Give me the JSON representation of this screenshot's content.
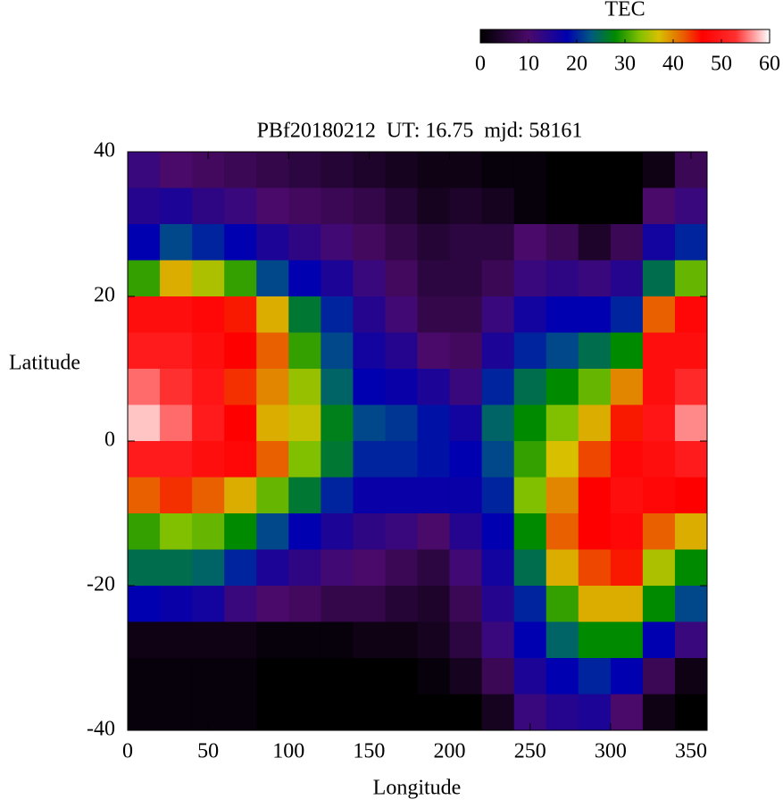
{
  "chart_data": {
    "type": "heatmap",
    "title": "PBf20180212  UT: 16.75  mjd: 58161",
    "x_label": "Longitude",
    "y_label": "Latitude",
    "colorbar_label": "TEC",
    "xlim": [
      0,
      360
    ],
    "xticks": [
      0,
      50,
      100,
      150,
      200,
      250,
      300,
      350
    ],
    "ylim": [
      -40,
      40
    ],
    "yticks": [
      -40,
      -20,
      0,
      20,
      40
    ],
    "zlim": [
      0,
      60
    ],
    "zticks": [
      0,
      10,
      20,
      30,
      40,
      50,
      60
    ],
    "colormap": [
      {
        "value": 0,
        "color": "#000000"
      },
      {
        "value": 10,
        "color": "#4a0a6a"
      },
      {
        "value": 18,
        "color": "#0000b0"
      },
      {
        "value": 23,
        "color": "#005a80"
      },
      {
        "value": 28,
        "color": "#008a00"
      },
      {
        "value": 33,
        "color": "#80c000"
      },
      {
        "value": 37,
        "color": "#d8c000"
      },
      {
        "value": 42,
        "color": "#e86000"
      },
      {
        "value": 46,
        "color": "#ff0000"
      },
      {
        "value": 53,
        "color": "#ff3030"
      },
      {
        "value": 60,
        "color": "#ffffff"
      }
    ],
    "x": [
      10,
      30,
      50,
      70,
      90,
      110,
      130,
      150,
      170,
      190,
      210,
      230,
      250,
      270,
      290,
      310,
      330,
      350
    ],
    "y": [
      37.5,
      32.5,
      27.5,
      22.5,
      17.5,
      12.5,
      7.5,
      2.5,
      -2.5,
      -7.5,
      -12.5,
      -17.5,
      -22.5,
      -27.5,
      -32.5,
      -37.5
    ],
    "z": [
      [
        12,
        10,
        9,
        8,
        7,
        6,
        5,
        4,
        3,
        2,
        2,
        1,
        1,
        0,
        0,
        0,
        2,
        8
      ],
      [
        14,
        15,
        13,
        12,
        10,
        9,
        8,
        7,
        5,
        3,
        4,
        3,
        1,
        0,
        0,
        0,
        10,
        12
      ],
      [
        18,
        22,
        20,
        18,
        15,
        13,
        11,
        9,
        7,
        5,
        6,
        6,
        10,
        8,
        4,
        8,
        16,
        20
      ],
      [
        30,
        38,
        35,
        30,
        22,
        18,
        15,
        12,
        9,
        6,
        6,
        8,
        12,
        13,
        12,
        14,
        25,
        32
      ],
      [
        48,
        48,
        47,
        45,
        38,
        26,
        20,
        14,
        11,
        7,
        7,
        12,
        16,
        18,
        18,
        20,
        42,
        47
      ],
      [
        50,
        50,
        48,
        46,
        42,
        30,
        22,
        16,
        14,
        10,
        9,
        15,
        20,
        22,
        25,
        28,
        48,
        48
      ],
      [
        55,
        53,
        49,
        44,
        40,
        34,
        24,
        18,
        17,
        15,
        12,
        20,
        25,
        28,
        32,
        40,
        48,
        52
      ],
      [
        58,
        55,
        50,
        46,
        38,
        36,
        27,
        22,
        21,
        19,
        16,
        24,
        28,
        33,
        38,
        45,
        49,
        56
      ],
      [
        50,
        50,
        48,
        47,
        42,
        33,
        26,
        20,
        20,
        19,
        18,
        22,
        30,
        37,
        43,
        47,
        48,
        50
      ],
      [
        42,
        44,
        42,
        38,
        32,
        26,
        20,
        17,
        17,
        17,
        17,
        20,
        33,
        40,
        46,
        48,
        47,
        46
      ],
      [
        30,
        33,
        32,
        28,
        22,
        18,
        15,
        13,
        12,
        10,
        14,
        18,
        28,
        42,
        46,
        47,
        42,
        38
      ],
      [
        25,
        25,
        24,
        20,
        15,
        13,
        11,
        10,
        8,
        6,
        11,
        16,
        25,
        38,
        43,
        45,
        35,
        28
      ],
      [
        18,
        17,
        16,
        12,
        10,
        9,
        7,
        7,
        5,
        4,
        8,
        14,
        20,
        30,
        38,
        38,
        28,
        22
      ],
      [
        2,
        2,
        2,
        2,
        1,
        1,
        1,
        2,
        2,
        3,
        6,
        12,
        18,
        24,
        28,
        28,
        18,
        12
      ],
      [
        1,
        1,
        1,
        1,
        0,
        0,
        0,
        0,
        0,
        1,
        3,
        8,
        15,
        18,
        20,
        18,
        8,
        2
      ],
      [
        1,
        1,
        1,
        1,
        0,
        0,
        0,
        0,
        0,
        0,
        0,
        3,
        12,
        14,
        15,
        10,
        2,
        0
      ]
    ]
  }
}
